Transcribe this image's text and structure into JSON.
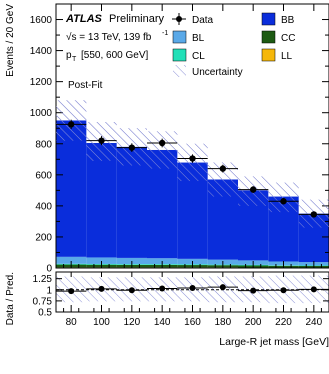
{
  "chart_data": {
    "type": "bar",
    "stacked": true,
    "xlabel": "Large-R jet mass [GeV]",
    "ylabel": "Events / 20 GeV",
    "ratio_ylabel": "Data / Pred.",
    "bin_width": 20,
    "bin_centers": [
      80,
      100,
      120,
      140,
      160,
      180,
      200,
      220,
      240
    ],
    "xlim": [
      70,
      250
    ],
    "ylim": [
      0,
      1700
    ],
    "ratio_ylim": [
      0.5,
      1.4
    ],
    "x_ticks": [
      "80",
      "100",
      "120",
      "140",
      "160",
      "180",
      "200",
      "220",
      "240"
    ],
    "y_ticks": [
      "0",
      "200",
      "400",
      "600",
      "800",
      "1000",
      "1200",
      "1400",
      "1600"
    ],
    "ratio_ticks": [
      "0.5",
      "0.75",
      "1",
      "1.25"
    ],
    "annotations": {
      "atlas": "ATLAS",
      "preliminary": "Preliminary",
      "energy": "√s = 13 TeV, 139 fb",
      "energy_sup": "-1",
      "pt_p": "p",
      "pt_sub": "T",
      "pt_range": "[550, 600 GeV]",
      "fit": "Post-Fit"
    },
    "legend": {
      "placement": "top-right",
      "data": "Data",
      "uncertainty": "Uncertainty",
      "entries": [
        "BL",
        "CL",
        "BB",
        "CC",
        "LL"
      ]
    },
    "series": [
      {
        "name": "LL",
        "color": "#f5b70a",
        "values": [
          4,
          4,
          4,
          4,
          4,
          4,
          3,
          3,
          3
        ]
      },
      {
        "name": "CC",
        "color": "#1d5a13",
        "values": [
          18,
          17,
          16,
          16,
          15,
          14,
          13,
          11,
          10
        ]
      },
      {
        "name": "CL",
        "color": "#22e0b8",
        "values": [
          5,
          5,
          5,
          5,
          5,
          4,
          4,
          3,
          3
        ]
      },
      {
        "name": "BL",
        "color": "#5aa9e8",
        "values": [
          45,
          42,
          40,
          38,
          35,
          32,
          29,
          25,
          22
        ]
      },
      {
        "name": "BB",
        "color": "#0a2ddb",
        "values": [
          878,
          737,
          715,
          697,
          620,
          516,
          451,
          418,
          312
        ]
      }
    ],
    "data_points": [
      {
        "x": 80,
        "y": 925,
        "err": 30
      },
      {
        "x": 100,
        "y": 820,
        "err": 29
      },
      {
        "x": 120,
        "y": 775,
        "err": 28
      },
      {
        "x": 140,
        "y": 805,
        "err": 28
      },
      {
        "x": 160,
        "y": 705,
        "err": 27
      },
      {
        "x": 180,
        "y": 640,
        "err": 25
      },
      {
        "x": 200,
        "y": 505,
        "err": 22
      },
      {
        "x": 220,
        "y": 430,
        "err": 21
      },
      {
        "x": 240,
        "y": 345,
        "err": 19
      }
    ],
    "uncertainty_band": [
      [
        820,
        1080
      ],
      [
        690,
        940
      ],
      [
        660,
        900
      ],
      [
        640,
        880
      ],
      [
        560,
        800
      ],
      [
        460,
        680
      ],
      [
        400,
        590
      ],
      [
        360,
        550
      ],
      [
        260,
        440
      ]
    ],
    "ratio_points": [
      {
        "x": 80,
        "y": 0.97,
        "err": 0.03
      },
      {
        "x": 100,
        "y": 1.02,
        "err": 0.03
      },
      {
        "x": 120,
        "y": 0.99,
        "err": 0.03
      },
      {
        "x": 140,
        "y": 1.03,
        "err": 0.03
      },
      {
        "x": 160,
        "y": 1.04,
        "err": 0.03
      },
      {
        "x": 180,
        "y": 1.06,
        "err": 0.03
      },
      {
        "x": 200,
        "y": 0.98,
        "err": 0.04
      },
      {
        "x": 220,
        "y": 0.99,
        "err": 0.04
      },
      {
        "x": 240,
        "y": 1.01,
        "err": 0.05
      }
    ],
    "ratio_band": [
      [
        0.72,
        1.3
      ],
      [
        0.74,
        1.28
      ],
      [
        0.74,
        1.28
      ],
      [
        0.74,
        1.28
      ],
      [
        0.74,
        1.28
      ],
      [
        0.72,
        1.3
      ],
      [
        0.72,
        1.3
      ],
      [
        0.7,
        1.32
      ],
      [
        0.7,
        1.32
      ]
    ]
  }
}
